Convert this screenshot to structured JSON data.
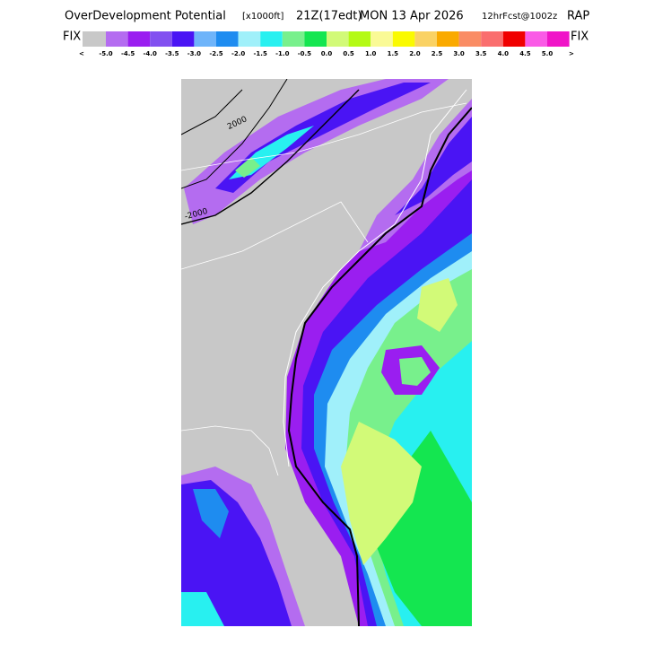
{
  "title": {
    "name": "OverDevelopment Potential",
    "units": "[x1000ft]",
    "valid": "21Z(17edt)",
    "date": "MON 13 Apr 2026",
    "forecast": "12hrFcst@1002z",
    "model": "RAP"
  },
  "colorbar": {
    "left_label": "FIX",
    "right_label": "FIX",
    "prev": "<",
    "next": ">",
    "colors": [
      "#c8c8c8",
      "#b46cf0",
      "#9a1ef0",
      "#8250f0",
      "#4a14f4",
      "#6eb4fa",
      "#1e8cf0",
      "#a0f0fa",
      "#28f0f0",
      "#78f08c",
      "#14e650",
      "#d2fa78",
      "#b4fa14",
      "#fafa96",
      "#fafa00",
      "#fad264",
      "#faaa00",
      "#fa8c64",
      "#fa6e6e",
      "#f00000",
      "#fa5ae6",
      "#f014c8"
    ],
    "labels": [
      "-5.0",
      "-4.5",
      "-4.0",
      "-3.5",
      "-3.0",
      "-2.5",
      "-2.0",
      "-1.5",
      "-1.0",
      "-0.5",
      "0.0",
      "0.5",
      "1.0",
      "1.5",
      "2.0",
      "2.5",
      "3.0",
      "3.5",
      "4.0",
      "4.5",
      "5.0"
    ]
  },
  "map": {
    "contour_labels": [
      "2000",
      "-2000"
    ]
  }
}
